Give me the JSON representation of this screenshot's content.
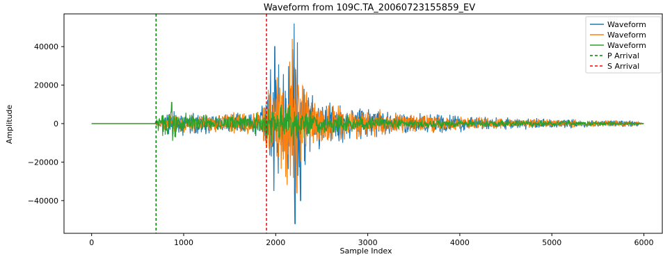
{
  "chart_data": {
    "type": "line",
    "title": "Waveform from 109C.TA_20060723155859_EV",
    "xlabel": "Sample Index",
    "ylabel": "Amplitude",
    "xlim": [
      -300,
      6200
    ],
    "ylim": [
      -57000,
      57000
    ],
    "x_ticks": [
      0,
      1000,
      2000,
      3000,
      4000,
      5000,
      6000
    ],
    "x_tick_labels": [
      "0",
      "1000",
      "2000",
      "3000",
      "4000",
      "5000",
      "6000"
    ],
    "y_ticks": [
      40000,
      20000,
      0,
      -20000,
      -40000
    ],
    "y_tick_labels": [
      "40000",
      "20000",
      "0",
      "−20000",
      "−40000"
    ],
    "grid": false,
    "legend_position": "top-right",
    "n_samples": 6000,
    "series": [
      {
        "name": "Waveform",
        "color": "#1f77b4",
        "envelope": [
          [
            0,
            0
          ],
          [
            690,
            0
          ],
          [
            700,
            2000
          ],
          [
            800,
            5000
          ],
          [
            900,
            8000
          ],
          [
            1200,
            6000
          ],
          [
            1500,
            6000
          ],
          [
            1800,
            8000
          ],
          [
            1900,
            15000
          ],
          [
            1950,
            40000
          ],
          [
            2050,
            30000
          ],
          [
            2200,
            52000
          ],
          [
            2300,
            30000
          ],
          [
            2400,
            15000
          ],
          [
            2600,
            14000
          ],
          [
            3000,
            10000
          ],
          [
            3500,
            7000
          ],
          [
            4000,
            5000
          ],
          [
            4500,
            3500
          ],
          [
            5000,
            3000
          ],
          [
            5500,
            2000
          ],
          [
            5900,
            2000
          ],
          [
            6000,
            0
          ]
        ],
        "peaks": [
          {
            "x": 2200,
            "y": 52000
          },
          {
            "x": 2210,
            "y": -52000
          },
          {
            "x": 2270,
            "y": -40000
          },
          {
            "x": 1990,
            "y": 40000
          },
          {
            "x": 1980,
            "y": -35000
          }
        ]
      },
      {
        "name": "Waveform",
        "color": "#ff7f0e",
        "envelope": [
          [
            0,
            0
          ],
          [
            690,
            0
          ],
          [
            700,
            2000
          ],
          [
            800,
            4000
          ],
          [
            900,
            6000
          ],
          [
            1200,
            6000
          ],
          [
            1500,
            6000
          ],
          [
            1800,
            7000
          ],
          [
            1900,
            15000
          ],
          [
            1950,
            25000
          ],
          [
            2050,
            33000
          ],
          [
            2200,
            44000
          ],
          [
            2300,
            33000
          ],
          [
            2400,
            18000
          ],
          [
            2600,
            12000
          ],
          [
            3000,
            9000
          ],
          [
            3500,
            6000
          ],
          [
            4000,
            4000
          ],
          [
            4500,
            3000
          ],
          [
            5000,
            2500
          ],
          [
            5500,
            2000
          ],
          [
            5900,
            1500
          ],
          [
            6000,
            0
          ]
        ],
        "peaks": [
          {
            "x": 2180,
            "y": 44000
          },
          {
            "x": 2230,
            "y": -36000
          }
        ]
      },
      {
        "name": "Waveform",
        "color": "#2ca02c",
        "envelope": [
          [
            0,
            0
          ],
          [
            690,
            0
          ],
          [
            700,
            3000
          ],
          [
            800,
            8000
          ],
          [
            850,
            11000
          ],
          [
            900,
            8000
          ],
          [
            1200,
            5000
          ],
          [
            1500,
            5000
          ],
          [
            1800,
            6000
          ],
          [
            1900,
            9000
          ],
          [
            2000,
            12000
          ],
          [
            2200,
            12000
          ],
          [
            2400,
            7000
          ],
          [
            2600,
            6000
          ],
          [
            3000,
            4000
          ],
          [
            3500,
            3000
          ],
          [
            4000,
            2500
          ],
          [
            4500,
            2000
          ],
          [
            5000,
            1500
          ],
          [
            5500,
            1200
          ],
          [
            5900,
            1000
          ],
          [
            6000,
            0
          ]
        ],
        "peaks": [
          {
            "x": 870,
            "y": 11000
          },
          {
            "x": 880,
            "y": -9000
          }
        ]
      }
    ],
    "vlines": [
      {
        "name": "P Arrival",
        "x": 700,
        "color": "#008000",
        "style": "dashed"
      },
      {
        "name": "S Arrival",
        "x": 1900,
        "color": "#ff0000",
        "style": "dashed"
      }
    ],
    "legend": [
      {
        "label": "Waveform",
        "color": "#1f77b4",
        "style": "solid"
      },
      {
        "label": "Waveform",
        "color": "#ff7f0e",
        "style": "solid"
      },
      {
        "label": "Waveform",
        "color": "#2ca02c",
        "style": "solid"
      },
      {
        "label": "P Arrival",
        "color": "#008000",
        "style": "dashed"
      },
      {
        "label": "S Arrival",
        "color": "#ff0000",
        "style": "dashed"
      }
    ]
  }
}
